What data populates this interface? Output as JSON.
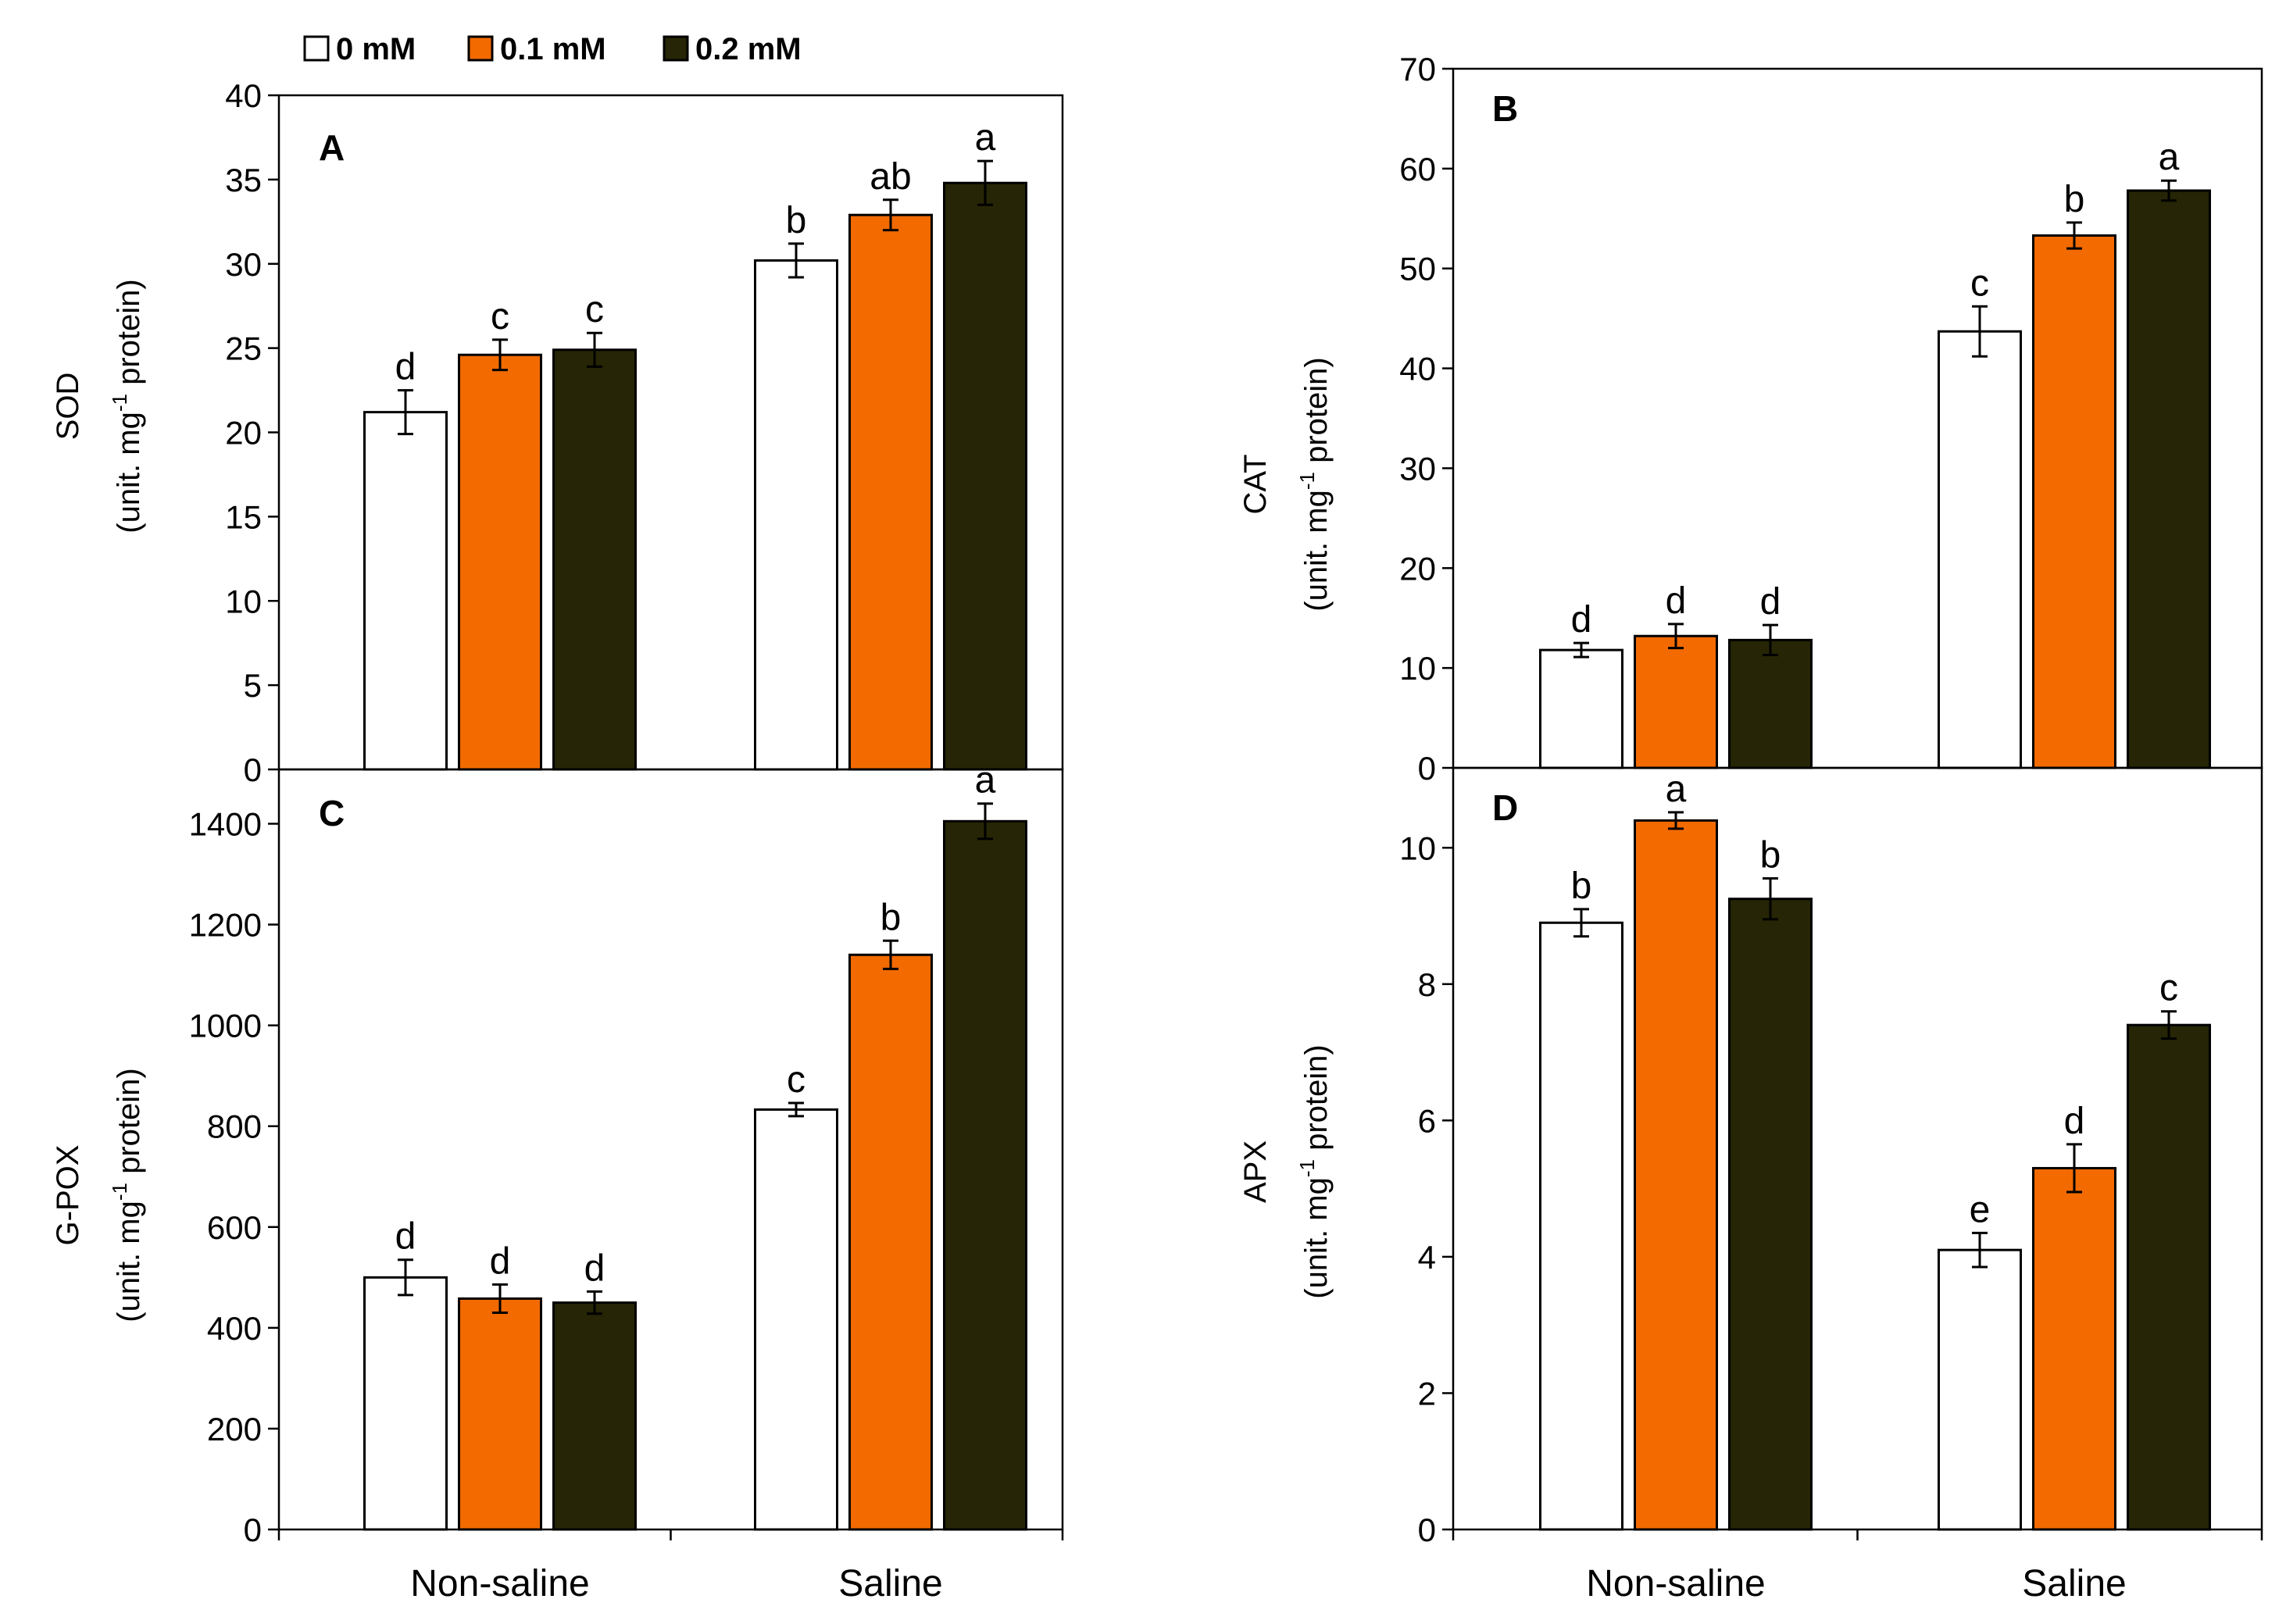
{
  "legend": [
    {
      "label": "0 mM",
      "color": "#ffffff"
    },
    {
      "label": "0.1 mM",
      "color": "#f26a00"
    },
    {
      "label": "0.2 mM",
      "color": "#262505"
    }
  ],
  "chart_data": [
    {
      "type": "bar",
      "panel": "A",
      "ylabel_line1": "SOD",
      "ylabel_line2": "(unit. mg",
      "ylabel_sup": "-1",
      "ylabel_line2_end": " protein)",
      "categories": [
        "Non-saline",
        "Saline"
      ],
      "series": [
        {
          "name": "0 mM",
          "values": [
            21.2,
            30.2
          ],
          "errors": [
            1.3,
            1.0
          ],
          "letters": [
            "d",
            "b"
          ]
        },
        {
          "name": "0.1 mM",
          "values": [
            24.6,
            32.9
          ],
          "errors": [
            0.9,
            0.9
          ],
          "letters": [
            "c",
            "ab"
          ]
        },
        {
          "name": "0.2 mM",
          "values": [
            24.9,
            34.8
          ],
          "errors": [
            1.0,
            1.3
          ],
          "letters": [
            "c",
            "a"
          ]
        }
      ],
      "ylim": [
        0,
        40
      ],
      "yticks": [
        0,
        5,
        10,
        15,
        20,
        25,
        30,
        35,
        40
      ],
      "show_xlabels": false
    },
    {
      "type": "bar",
      "panel": "B",
      "ylabel_line1": "CAT",
      "ylabel_line2": "(unit. mg",
      "ylabel_sup": "-1",
      "ylabel_line2_end": " protein)",
      "categories": [
        "Non-saline",
        "Saline"
      ],
      "series": [
        {
          "name": "0 mM",
          "values": [
            11.8,
            43.7
          ],
          "errors": [
            0.7,
            2.5
          ],
          "letters": [
            "d",
            "c"
          ]
        },
        {
          "name": "0.1 mM",
          "values": [
            13.2,
            53.3
          ],
          "errors": [
            1.2,
            1.3
          ],
          "letters": [
            "d",
            "b"
          ]
        },
        {
          "name": "0.2 mM",
          "values": [
            12.8,
            57.8
          ],
          "errors": [
            1.5,
            1.0
          ],
          "letters": [
            "d",
            "a"
          ]
        }
      ],
      "ylim": [
        0,
        70
      ],
      "yticks": [
        0,
        10,
        20,
        30,
        40,
        50,
        60,
        70
      ],
      "show_xlabels": false
    },
    {
      "type": "bar",
      "panel": "C",
      "ylabel_line1": "G-POX",
      "ylabel_line2": "(unit. mg",
      "ylabel_sup": "-1",
      "ylabel_line2_end": " protein)",
      "categories": [
        "Non-saline",
        "Saline"
      ],
      "series": [
        {
          "name": "0 mM",
          "values": [
            500,
            833
          ],
          "errors": [
            35,
            13
          ],
          "letters": [
            "d",
            "c"
          ]
        },
        {
          "name": "0.1 mM",
          "values": [
            458,
            1140
          ],
          "errors": [
            28,
            28
          ],
          "letters": [
            "d",
            "b"
          ]
        },
        {
          "name": "0.2 mM",
          "values": [
            450,
            1405
          ],
          "errors": [
            22,
            35
          ],
          "letters": [
            "d",
            "a"
          ]
        }
      ],
      "ylim": [
        0,
        1500
      ],
      "yticks": [
        0,
        200,
        400,
        600,
        800,
        1000,
        1200,
        1400
      ],
      "show_xlabels": true
    },
    {
      "type": "bar",
      "panel": "D",
      "ylabel_line1": "APX",
      "ylabel_line2": "(unit. mg",
      "ylabel_sup": "-1",
      "ylabel_line2_end": " protein)",
      "categories": [
        "Non-saline",
        "Saline"
      ],
      "series": [
        {
          "name": "0 mM",
          "values": [
            8.9,
            4.1
          ],
          "errors": [
            0.2,
            0.25
          ],
          "letters": [
            "b",
            "e"
          ]
        },
        {
          "name": "0.1 mM",
          "values": [
            10.4,
            5.3
          ],
          "errors": [
            0.12,
            0.35
          ],
          "letters": [
            "a",
            "d"
          ]
        },
        {
          "name": "0.2 mM",
          "values": [
            9.25,
            7.4
          ],
          "errors": [
            0.3,
            0.2
          ],
          "letters": [
            "b",
            "c"
          ]
        }
      ],
      "ylim": [
        0,
        11
      ],
      "yticks": [
        0,
        2,
        4,
        6,
        8,
        10
      ],
      "show_xlabels": true
    }
  ]
}
